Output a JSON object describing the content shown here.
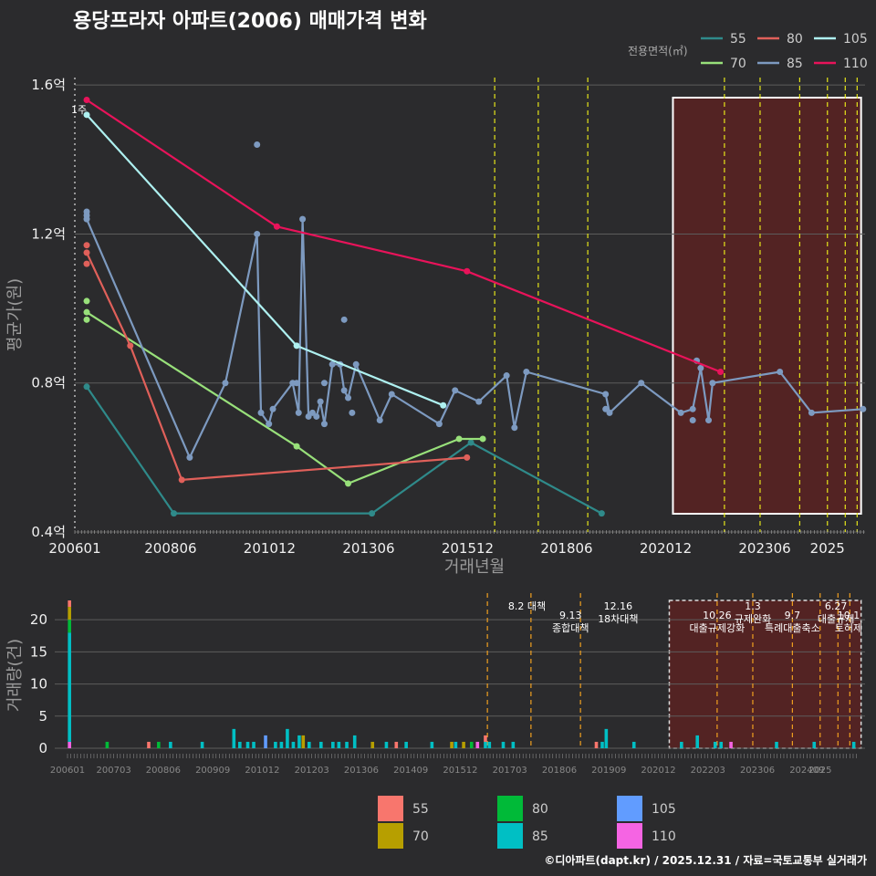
{
  "chart_data": [
    {
      "type": "line",
      "title": "용당프라자 아파트(2006) 매매가격 변화",
      "xlabel": "거래년월",
      "ylabel": "평균가(원)",
      "x_ticks": [
        "200601",
        "200806",
        "201012",
        "201306",
        "201512",
        "201806",
        "202012",
        "202306",
        "2025"
      ],
      "y_ticks": [
        {
          "v": 0.4,
          "label": "0.4억"
        },
        {
          "v": 0.8,
          "label": "0.8억"
        },
        {
          "v": 1.2,
          "label": "1.2억"
        },
        {
          "v": 1.6,
          "label": "1.6억"
        }
      ],
      "xlim": [
        2006.0,
        2025.95
      ],
      "ylim": [
        0.4,
        1.62
      ],
      "legend_title": "전용면적(㎡)",
      "start_label": "1주",
      "series": [
        {
          "name": "55",
          "color": "#2f8a8a",
          "points": [
            [
              2006.3,
              0.79
            ],
            [
              2008.5,
              0.45
            ],
            [
              2013.5,
              0.45
            ],
            [
              2016.0,
              0.64
            ],
            [
              2019.3,
              0.45
            ]
          ],
          "extra": []
        },
        {
          "name": "70",
          "color": "#98e07a",
          "points": [
            [
              2006.3,
              0.99
            ],
            [
              2011.6,
              0.63
            ],
            [
              2012.9,
              0.53
            ],
            [
              2015.7,
              0.65
            ],
            [
              2016.3,
              0.65
            ]
          ],
          "extra": [
            [
              2006.3,
              1.02
            ],
            [
              2006.3,
              0.97
            ]
          ]
        },
        {
          "name": "80",
          "color": "#e0605a",
          "points": [
            [
              2006.3,
              1.15
            ],
            [
              2007.4,
              0.9
            ],
            [
              2008.7,
              0.54
            ],
            [
              2015.9,
              0.6
            ]
          ],
          "extra": [
            [
              2006.3,
              1.17
            ],
            [
              2006.3,
              1.12
            ]
          ]
        },
        {
          "name": "85",
          "color": "#7d9ac0",
          "points": [
            [
              2006.3,
              1.24
            ],
            [
              2008.9,
              0.6
            ],
            [
              2009.8,
              0.8
            ],
            [
              2010.6,
              1.2
            ],
            [
              2010.7,
              0.72
            ],
            [
              2010.9,
              0.69
            ],
            [
              2011.0,
              0.73
            ],
            [
              2011.5,
              0.8
            ],
            [
              2011.65,
              0.72
            ],
            [
              2011.75,
              1.24
            ],
            [
              2011.9,
              0.71
            ],
            [
              2012.0,
              0.72
            ],
            [
              2012.1,
              0.71
            ],
            [
              2012.2,
              0.75
            ],
            [
              2012.3,
              0.69
            ],
            [
              2012.5,
              0.85
            ],
            [
              2012.7,
              0.85
            ],
            [
              2012.8,
              0.78
            ],
            [
              2012.9,
              0.76
            ],
            [
              2013.1,
              0.85
            ],
            [
              2013.7,
              0.7
            ],
            [
              2014.0,
              0.77
            ],
            [
              2015.2,
              0.69
            ],
            [
              2015.6,
              0.78
            ],
            [
              2016.2,
              0.75
            ],
            [
              2016.9,
              0.82
            ],
            [
              2017.1,
              0.68
            ],
            [
              2017.4,
              0.83
            ],
            [
              2019.4,
              0.77
            ],
            [
              2019.5,
              0.72
            ],
            [
              2020.3,
              0.8
            ],
            [
              2021.3,
              0.72
            ],
            [
              2021.6,
              0.73
            ],
            [
              2021.8,
              0.84
            ],
            [
              2022.0,
              0.7
            ],
            [
              2022.1,
              0.8
            ],
            [
              2023.8,
              0.83
            ],
            [
              2024.6,
              0.72
            ],
            [
              2025.9,
              0.73
            ]
          ],
          "extra": [
            [
              2006.3,
              1.26
            ],
            [
              2006.3,
              1.25
            ],
            [
              2010.6,
              1.44
            ],
            [
              2011.6,
              0.8
            ],
            [
              2012.3,
              0.8
            ],
            [
              2012.8,
              0.97
            ],
            [
              2013.0,
              0.72
            ],
            [
              2019.4,
              0.73
            ],
            [
              2021.6,
              0.7
            ],
            [
              2021.7,
              0.86
            ]
          ]
        },
        {
          "name": "105",
          "color": "#aef0f0",
          "points": [
            [
              2006.3,
              1.52
            ],
            [
              2011.6,
              0.9
            ],
            [
              2015.3,
              0.74
            ]
          ],
          "extra": []
        },
        {
          "name": "110",
          "color": "#e8135a",
          "points": [
            [
              2006.3,
              1.56
            ],
            [
              2011.1,
              1.22
            ],
            [
              2015.9,
              1.1
            ],
            [
              2022.3,
              0.83
            ]
          ],
          "extra": []
        }
      ],
      "highlight_window": {
        "x0": 2021.1,
        "x1": 2025.85
      },
      "event_lines": [
        2016.6,
        2017.7,
        2018.95,
        2022.4,
        2023.3,
        2024.3,
        2025.0,
        2025.45,
        2025.75
      ]
    },
    {
      "type": "bar",
      "ylabel": "거래량(건)",
      "x_ticks": [
        "200601",
        "200703",
        "200806",
        "200909",
        "201012",
        "201203",
        "201306",
        "201409",
        "201512",
        "201703",
        "201806",
        "201909",
        "202012",
        "202203",
        "202306",
        "202409",
        "2025"
      ],
      "y_ticks": [
        0,
        5,
        10,
        15,
        20
      ],
      "ylim": [
        0,
        23
      ],
      "legend": [
        {
          "name": "55",
          "color": "#f8766d"
        },
        {
          "name": "70",
          "color": "#b79f00"
        },
        {
          "name": "80",
          "color": "#00ba38"
        },
        {
          "name": "85",
          "color": "#00bfc4"
        },
        {
          "name": "105",
          "color": "#619cff"
        },
        {
          "name": "110",
          "color": "#f564e3"
        }
      ],
      "stacks": [
        {
          "x": 2006.05,
          "parts": {
            "110": 1,
            "85": 17,
            "80": 2,
            "70": 2,
            "55": 1
          }
        },
        {
          "x": 2007.0,
          "parts": {
            "80": 1
          }
        },
        {
          "x": 2008.05,
          "parts": {
            "55": 1
          }
        },
        {
          "x": 2008.3,
          "parts": {
            "80": 1
          }
        },
        {
          "x": 2008.6,
          "parts": {
            "85": 1
          }
        },
        {
          "x": 2009.4,
          "parts": {
            "85": 1
          }
        },
        {
          "x": 2010.2,
          "parts": {
            "85": 3
          }
        },
        {
          "x": 2010.35,
          "parts": {
            "85": 1
          }
        },
        {
          "x": 2010.55,
          "parts": {
            "85": 1
          }
        },
        {
          "x": 2010.7,
          "parts": {
            "85": 1
          }
        },
        {
          "x": 2011.0,
          "parts": {
            "105": 2
          }
        },
        {
          "x": 2011.25,
          "parts": {
            "85": 1
          }
        },
        {
          "x": 2011.4,
          "parts": {
            "85": 1
          }
        },
        {
          "x": 2011.55,
          "parts": {
            "85": 3
          }
        },
        {
          "x": 2011.7,
          "parts": {
            "85": 1
          }
        },
        {
          "x": 2011.85,
          "parts": {
            "85": 2
          }
        },
        {
          "x": 2011.95,
          "parts": {
            "70": 2
          }
        },
        {
          "x": 2012.1,
          "parts": {
            "85": 1
          }
        },
        {
          "x": 2012.4,
          "parts": {
            "85": 1
          }
        },
        {
          "x": 2012.7,
          "parts": {
            "85": 1
          }
        },
        {
          "x": 2012.85,
          "parts": {
            "85": 1
          }
        },
        {
          "x": 2013.05,
          "parts": {
            "85": 1
          }
        },
        {
          "x": 2013.25,
          "parts": {
            "85": 2
          }
        },
        {
          "x": 2013.7,
          "parts": {
            "70": 1
          }
        },
        {
          "x": 2014.05,
          "parts": {
            "85": 1
          }
        },
        {
          "x": 2014.3,
          "parts": {
            "55": 1
          }
        },
        {
          "x": 2014.55,
          "parts": {
            "85": 1
          }
        },
        {
          "x": 2015.2,
          "parts": {
            "85": 1
          }
        },
        {
          "x": 2015.7,
          "parts": {
            "70": 1
          }
        },
        {
          "x": 2015.8,
          "parts": {
            "85": 1
          }
        },
        {
          "x": 2016.0,
          "parts": {
            "70": 1
          }
        },
        {
          "x": 2016.2,
          "parts": {
            "80": 1
          }
        },
        {
          "x": 2016.35,
          "parts": {
            "110": 1
          }
        },
        {
          "x": 2016.55,
          "parts": {
            "85": 1,
            "55": 1
          }
        },
        {
          "x": 2016.65,
          "parts": {
            "85": 1
          }
        },
        {
          "x": 2017.0,
          "parts": {
            "85": 1
          }
        },
        {
          "x": 2017.25,
          "parts": {
            "85": 1
          }
        },
        {
          "x": 2019.35,
          "parts": {
            "55": 1
          }
        },
        {
          "x": 2019.5,
          "parts": {
            "85": 1
          }
        },
        {
          "x": 2019.6,
          "parts": {
            "85": 3
          }
        },
        {
          "x": 2020.3,
          "parts": {
            "85": 1
          }
        },
        {
          "x": 2021.5,
          "parts": {
            "85": 1
          }
        },
        {
          "x": 2021.9,
          "parts": {
            "85": 2
          }
        },
        {
          "x": 2022.35,
          "parts": {
            "85": 1
          }
        },
        {
          "x": 2022.5,
          "parts": {
            "85": 1
          }
        },
        {
          "x": 2022.75,
          "parts": {
            "110": 1
          }
        },
        {
          "x": 2023.9,
          "parts": {
            "85": 1
          }
        },
        {
          "x": 2024.85,
          "parts": {
            "85": 1
          }
        },
        {
          "x": 2025.85,
          "parts": {
            "85": 1
          }
        }
      ],
      "annotations": [
        {
          "x": 2017.6,
          "lines": [
            "8.2 대책"
          ]
        },
        {
          "x": 2018.7,
          "lines": [
            "9.13",
            "종합대책"
          ]
        },
        {
          "x": 2019.9,
          "lines": [
            "12.16",
            "18차대책"
          ]
        },
        {
          "x": 2022.4,
          "lines": [
            "10.26",
            "대출규제강화"
          ]
        },
        {
          "x": 2023.3,
          "lines": [
            "1.3",
            "규제완화"
          ]
        },
        {
          "x": 2024.3,
          "lines": [
            "9.7",
            "특례대출축소"
          ]
        },
        {
          "x": 2025.4,
          "lines": [
            "6.27",
            "대출규제"
          ]
        },
        {
          "x": 2025.75,
          "lines": [
            "10.1",
            "토허제"
          ]
        }
      ]
    }
  ],
  "footer": "©디아파트(dapt.kr) / 2025.12.31 / 자료=국토교통부 실거래가"
}
